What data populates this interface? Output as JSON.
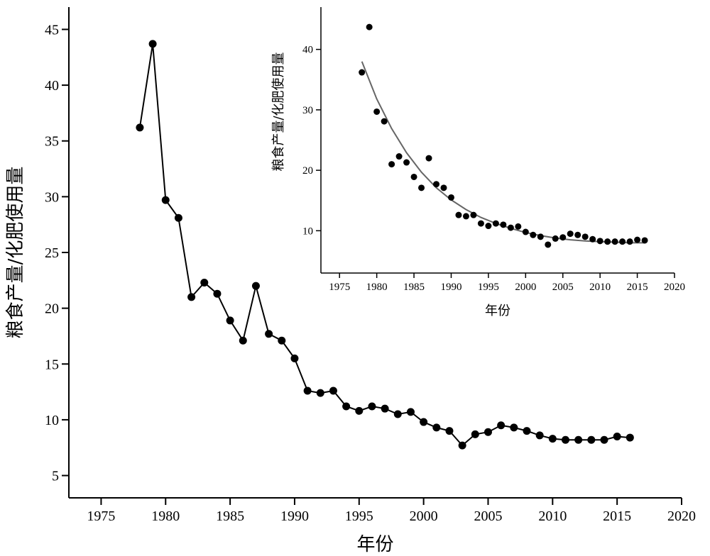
{
  "chart_data": [
    {
      "type": "line",
      "xlabel": "年份",
      "ylabel": "粮食产量/化肥使用量",
      "xlim": [
        1972.5,
        2020
      ],
      "ylim": [
        3,
        47
      ],
      "xticks": [
        1975,
        1980,
        1985,
        1990,
        1995,
        2000,
        2005,
        2010,
        2015,
        2020
      ],
      "yticks": [
        5,
        10,
        15,
        20,
        25,
        30,
        35,
        40,
        45
      ],
      "series": [
        {
          "x": [
            1978,
            1979,
            1980,
            1981,
            1982,
            1983,
            1984,
            1985,
            1986,
            1987,
            1988,
            1989,
            1990,
            1991,
            1992,
            1993,
            1994,
            1995,
            1996,
            1997,
            1998,
            1999,
            2000,
            2001,
            2002,
            2003,
            2004,
            2005,
            2006,
            2007,
            2008,
            2009,
            2010,
            2011,
            2012,
            2013,
            2014,
            2015,
            2016
          ],
          "y": [
            36.2,
            43.7,
            29.7,
            28.1,
            21.0,
            22.3,
            21.3,
            18.9,
            17.1,
            22.0,
            17.7,
            17.1,
            15.5,
            12.6,
            12.4,
            12.6,
            11.2,
            10.8,
            11.2,
            11.0,
            10.5,
            10.7,
            9.8,
            9.3,
            9.0,
            7.7,
            8.7,
            8.9,
            9.5,
            9.3,
            9.0,
            8.6,
            8.3,
            8.2,
            8.2,
            8.2,
            8.2,
            8.5,
            8.4
          ]
        }
      ]
    },
    {
      "type": "scatter",
      "xlabel": "年份",
      "ylabel": "粮食产量/化肥使用量",
      "xlim": [
        1972.5,
        2020
      ],
      "ylim": [
        3,
        47
      ],
      "xticks": [
        1975,
        1980,
        1985,
        1990,
        1995,
        2000,
        2005,
        2010,
        2015,
        2020
      ],
      "yticks": [
        10,
        20,
        30,
        40
      ],
      "series": [
        {
          "x": [
            1978,
            1979,
            1980,
            1981,
            1982,
            1983,
            1984,
            1985,
            1986,
            1987,
            1988,
            1989,
            1990,
            1991,
            1992,
            1993,
            1994,
            1995,
            1996,
            1997,
            1998,
            1999,
            2000,
            2001,
            2002,
            2003,
            2004,
            2005,
            2006,
            2007,
            2008,
            2009,
            2010,
            2011,
            2012,
            2013,
            2014,
            2015,
            2016
          ],
          "y": [
            36.2,
            43.7,
            29.7,
            28.1,
            21.0,
            22.3,
            21.3,
            18.9,
            17.1,
            22.0,
            17.7,
            17.1,
            15.5,
            12.6,
            12.4,
            12.6,
            11.2,
            10.8,
            11.2,
            11.0,
            10.5,
            10.7,
            9.8,
            9.3,
            9.0,
            7.7,
            8.7,
            8.9,
            9.5,
            9.3,
            9.0,
            8.6,
            8.3,
            8.2,
            8.2,
            8.2,
            8.2,
            8.5,
            8.4
          ]
        }
      ],
      "fit_curve": {
        "x": [
          1978,
          1980,
          1982,
          1984,
          1986,
          1988,
          1990,
          1992,
          1994,
          1996,
          1998,
          2000,
          2002,
          2004,
          2006,
          2008,
          2010,
          2012,
          2014,
          2016
        ],
        "y": [
          38.0,
          31.8,
          26.9,
          22.9,
          19.7,
          17.1,
          15.1,
          13.5,
          12.2,
          11.2,
          10.4,
          9.7,
          9.2,
          8.8,
          8.5,
          8.3,
          8.2,
          8.1,
          8.0,
          8.0
        ]
      }
    }
  ]
}
